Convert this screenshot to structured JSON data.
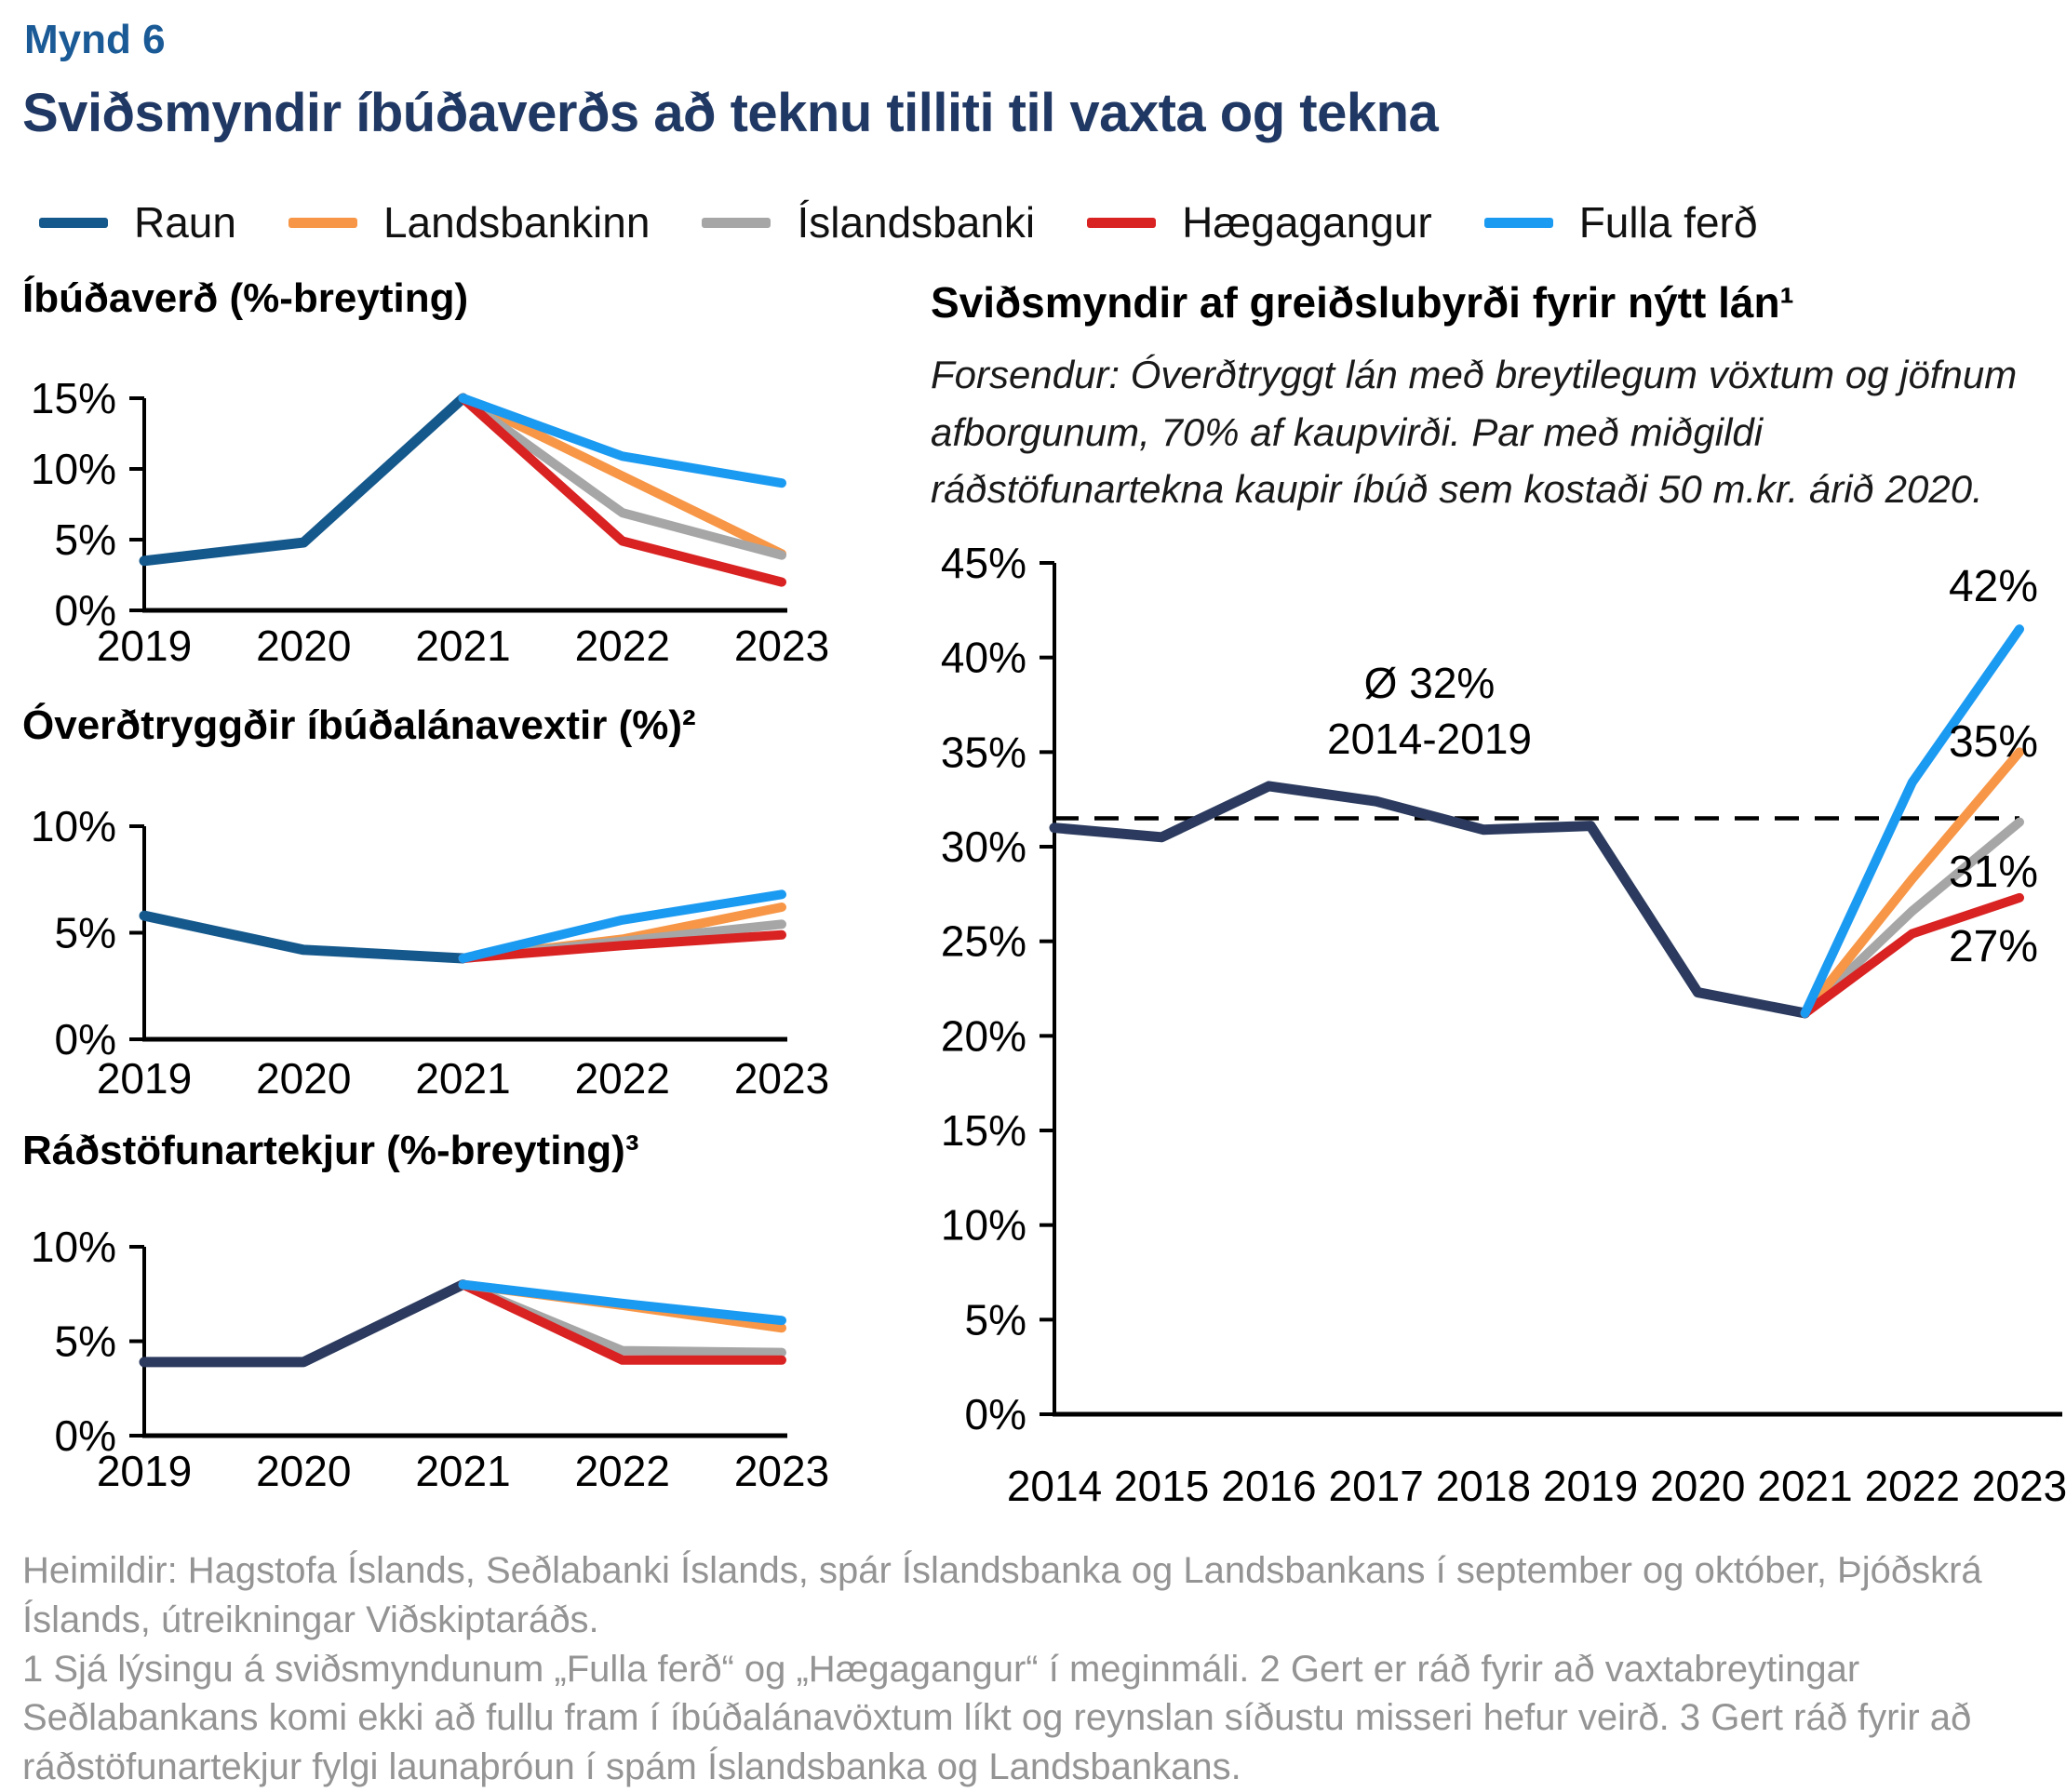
{
  "header": {
    "figure_label": "Mynd 6",
    "title": "Sviðsmyndir íbúðaverðs að teknu tilliti til vaxta og tekna"
  },
  "palette": {
    "raun_steel_blue": "#14588C",
    "raun_dark_navy": "#2B3A5E",
    "landsbankinn_orange": "#F79646",
    "islandsbanki_gray": "#A6A6A6",
    "haegagangur_red": "#D92222",
    "fulla_ferd_blue": "#1B9AF2",
    "figure_label_blue": "#1A5A96",
    "title_navy": "#203864",
    "footnote_gray": "#949494"
  },
  "legend": [
    {
      "label": "Raun",
      "color": "#14588C"
    },
    {
      "label": "Landsbankinn",
      "color": "#F79646"
    },
    {
      "label": "Íslandsbanki",
      "color": "#A6A6A6"
    },
    {
      "label": "Hægagangur",
      "color": "#D92222"
    },
    {
      "label": "Fulla ferð",
      "color": "#1B9AF2"
    }
  ],
  "chart_data": [
    {
      "id": "ibudaverd",
      "type": "line",
      "title": "Íbúðaverð (%-breyting)",
      "x": [
        2019,
        2020,
        2021,
        2022,
        2023
      ],
      "ylim": [
        0,
        15
      ],
      "yticks": [
        15,
        10,
        5,
        0
      ],
      "series": [
        {
          "name": "Raun",
          "color": "#14588C",
          "width": 11,
          "values": [
            3.5,
            4.8,
            15.0,
            null,
            null
          ]
        },
        {
          "name": "Landsbankinn",
          "color": "#F79646",
          "width": 10,
          "values": [
            null,
            null,
            15.0,
            9.5,
            4.0
          ]
        },
        {
          "name": "Íslandsbanki",
          "color": "#A6A6A6",
          "width": 10,
          "values": [
            null,
            null,
            15.0,
            6.9,
            3.9
          ]
        },
        {
          "name": "Hægagangur",
          "color": "#D92222",
          "width": 10,
          "values": [
            null,
            null,
            15.0,
            4.9,
            2.0
          ]
        },
        {
          "name": "Fulla ferð",
          "color": "#1B9AF2",
          "width": 10,
          "values": [
            null,
            null,
            15.0,
            10.9,
            9.0
          ]
        }
      ]
    },
    {
      "id": "vextir",
      "type": "line",
      "title": "Óverðtryggðir íbúðalánavextir (%)²",
      "x": [
        2019,
        2020,
        2021,
        2022,
        2023
      ],
      "ylim": [
        0,
        10
      ],
      "yticks": [
        10,
        5,
        0
      ],
      "series": [
        {
          "name": "Raun",
          "color": "#14588C",
          "width": 11,
          "values": [
            5.8,
            4.2,
            3.8,
            null,
            null
          ]
        },
        {
          "name": "Landsbankinn",
          "color": "#F79646",
          "width": 10,
          "values": [
            null,
            null,
            3.8,
            4.7,
            6.2
          ]
        },
        {
          "name": "Íslandsbanki",
          "color": "#A6A6A6",
          "width": 10,
          "values": [
            null,
            null,
            3.8,
            4.6,
            5.4
          ]
        },
        {
          "name": "Hægagangur",
          "color": "#D92222",
          "width": 10,
          "values": [
            null,
            null,
            3.8,
            4.4,
            4.9
          ]
        },
        {
          "name": "Fulla ferð",
          "color": "#1B9AF2",
          "width": 10,
          "values": [
            null,
            null,
            3.8,
            5.6,
            6.8
          ]
        }
      ]
    },
    {
      "id": "tekjur",
      "type": "line",
      "title": "Ráðstöfunartekjur (%-breyting)³",
      "x": [
        2019,
        2020,
        2021,
        2022,
        2023
      ],
      "ylim": [
        0,
        10
      ],
      "yticks": [
        10,
        5,
        0
      ],
      "series": [
        {
          "name": "Raun",
          "color": "#2B3A5E",
          "width": 11,
          "values": [
            3.9,
            3.9,
            8.0,
            null,
            null
          ]
        },
        {
          "name": "Íslandsbanki",
          "color": "#A6A6A6",
          "width": 10,
          "values": [
            null,
            null,
            8.0,
            4.5,
            4.4
          ]
        },
        {
          "name": "Hægagangur",
          "color": "#D92222",
          "width": 10,
          "values": [
            null,
            null,
            8.0,
            4.0,
            4.0
          ]
        },
        {
          "name": "Landsbankinn",
          "color": "#F79646",
          "width": 10,
          "values": [
            null,
            null,
            8.0,
            6.9,
            5.7
          ]
        },
        {
          "name": "Fulla ferð",
          "color": "#1B9AF2",
          "width": 10,
          "values": [
            null,
            null,
            8.0,
            7.0,
            6.1
          ]
        }
      ]
    },
    {
      "id": "greidslubyrdi",
      "type": "line",
      "title": "Sviðsmyndir af greiðslubyrði fyrir nýtt lán¹",
      "subtitle": "Forsendur: Óverðtryggt lán með breytilegum vöxtum og jöfnum afborgunum, 70% af kaupvirði. Par með miðgildi ráðstöfunartekna kaupir íbúð sem kostaði 50 m.kr. árið 2020.",
      "x": [
        2014,
        2015,
        2016,
        2017,
        2018,
        2019,
        2020,
        2021,
        2022,
        2023
      ],
      "ylim": [
        0,
        45
      ],
      "yticks": [
        45,
        40,
        35,
        30,
        25,
        20,
        15,
        10,
        5,
        0
      ],
      "reference_line": {
        "value": 31.5,
        "label_lines": [
          "Ø 32%",
          "2014-2019"
        ]
      },
      "series": [
        {
          "name": "Raun",
          "color": "#2B3A5E",
          "width": 11,
          "values": [
            31.0,
            30.5,
            33.2,
            32.4,
            30.9,
            31.1,
            22.3,
            21.2,
            null,
            null
          ]
        },
        {
          "name": "Íslandsbanki",
          "color": "#A6A6A6",
          "width": 10,
          "values": [
            null,
            null,
            null,
            null,
            null,
            null,
            null,
            21.2,
            26.6,
            31.3
          ]
        },
        {
          "name": "Landsbankinn",
          "color": "#F79646",
          "width": 10,
          "values": [
            null,
            null,
            null,
            null,
            null,
            null,
            null,
            21.2,
            28.3,
            35.0
          ]
        },
        {
          "name": "Hægagangur",
          "color": "#D92222",
          "width": 10,
          "values": [
            null,
            null,
            null,
            null,
            null,
            null,
            null,
            21.2,
            25.4,
            27.3
          ]
        },
        {
          "name": "Fulla ferð",
          "color": "#1B9AF2",
          "width": 10,
          "values": [
            null,
            null,
            null,
            null,
            null,
            null,
            null,
            21.2,
            33.4,
            41.5
          ]
        }
      ],
      "end_labels": [
        {
          "series": "Fulla ferð",
          "text": "42%"
        },
        {
          "series": "Landsbankinn",
          "text": "35%"
        },
        {
          "series": "Íslandsbanki",
          "text": "31%"
        },
        {
          "series": "Hægagangur",
          "text": "27%"
        }
      ]
    }
  ],
  "footer": {
    "sources": "Heimildir: Hagstofa Íslands, Seðlabanki Íslands, spár Íslandsbanka og Landsbankans í september og október, Þjóðskrá Íslands, útreikningar Viðskiptaráðs.",
    "notes": "1 Sjá lýsingu á sviðsmyndunum „Fulla ferð“ og „Hægagangur“ í meginmáli. 2 Gert er ráð fyrir að vaxtabreytingar Seðlabankans komi ekki að fullu fram í íbúðalánavöxtum líkt og reynslan síðustu misseri hefur veirð. 3 Gert ráð fyrir að ráðstöfunartekjur fylgi launaþróun í spám Íslandsbanka og Landsbankans."
  }
}
